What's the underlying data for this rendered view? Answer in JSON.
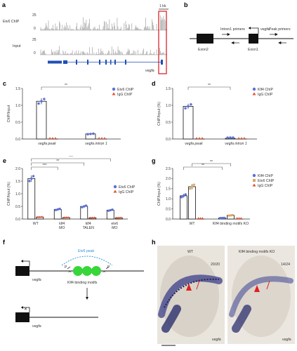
{
  "panels": {
    "a": {
      "letter": "a",
      "track_labels": [
        "Etv6 ChIP",
        "Input"
      ],
      "track_max": "25",
      "track_min": "0",
      "scale_bar": "1 kb",
      "gene": "vegfa"
    },
    "b": {
      "letter": "b",
      "gene": "vegfa",
      "intron_primers": "Intron1 primers",
      "peak_primers": "Peak primers",
      "exon2": "Exon2",
      "exon1": "Exon1"
    },
    "c": {
      "letter": "c",
      "legend": [
        "Etv6 ChIP",
        "IgG ChIP"
      ]
    },
    "d": {
      "letter": "d",
      "legend": [
        "Klf4 ChIP",
        "IgG ChIP"
      ]
    },
    "e": {
      "letter": "e",
      "legend": [
        "Etv6 ChIP",
        "IgG ChIP"
      ]
    },
    "g": {
      "letter": "g",
      "legend": [
        "Klf4 ChIP",
        "Etv6 ChIP",
        "IgG ChIP"
      ]
    },
    "f": {
      "letter": "f",
      "gene": "vegfa",
      "peak": "Etv6 peak",
      "motifs": "Klf4 binding motifs",
      "marker": "P"
    },
    "h": {
      "letter": "h",
      "left_title": "WT",
      "right_title": "Klf4 binding motifs KO",
      "left_count": "20/20",
      "right_count": "14/24",
      "gene": "vegfa"
    }
  },
  "chart_data": [
    {
      "id": "c",
      "type": "bar",
      "ylabel": "ChIP/Input",
      "ylim": [
        0,
        1.5
      ],
      "yticks": [
        "0.0",
        "0.5",
        "1.0",
        "1.5"
      ],
      "categories": [
        "vegfa peak",
        "vegfa intron 1"
      ],
      "series": [
        {
          "name": "Etv6 ChIP",
          "values": [
            1.12,
            0.15
          ]
        },
        {
          "name": "IgG ChIP",
          "values": [
            0.0,
            0.0
          ]
        }
      ],
      "significance": [
        {
          "label": "**",
          "from": 0,
          "to": 1
        }
      ]
    },
    {
      "id": "d",
      "type": "bar",
      "ylabel": "ChIP/Input (%)",
      "ylim": [
        0,
        1.5
      ],
      "yticks": [
        "0.0",
        "0.5",
        "1.0",
        "1.5"
      ],
      "categories": [
        "vegfa peak",
        "vegfa intron 1"
      ],
      "series": [
        {
          "name": "Klf4 ChIP",
          "values": [
            0.97,
            0.02
          ]
        },
        {
          "name": "IgG ChIP",
          "values": [
            0.0,
            0.0
          ]
        }
      ],
      "significance": [
        {
          "label": "**",
          "from": 0,
          "to": 1
        }
      ]
    },
    {
      "id": "e",
      "type": "bar",
      "ylabel": "ChIP/Input (%)",
      "ylim": [
        0,
        2.0
      ],
      "yticks": [
        "0.0",
        "0.5",
        "1.0",
        "1.5",
        "2.0"
      ],
      "categories": [
        "WT",
        "klf4 MO",
        "klf4 TALEN",
        "etv6 MO"
      ],
      "series": [
        {
          "name": "Etv6 ChIP",
          "values": [
            1.6,
            0.38,
            0.5,
            0.35
          ]
        },
        {
          "name": "IgG ChIP",
          "values": [
            0.08,
            0.06,
            0.05,
            0.05
          ]
        }
      ],
      "significance": [
        {
          "label": "***",
          "from": 0,
          "to": 1
        },
        {
          "label": "**",
          "from": 0,
          "to": 2
        },
        {
          "label": "***",
          "from": 0,
          "to": 3
        }
      ]
    },
    {
      "id": "g",
      "type": "bar",
      "ylabel": "ChIP/Input (%)",
      "ylim": [
        0,
        2.5
      ],
      "yticks": [
        "0.0",
        "0.5",
        "1.0",
        "1.5",
        "2.0",
        "2.5"
      ],
      "categories": [
        "WT",
        "Klf4 binding motifs KO"
      ],
      "series": [
        {
          "name": "Klf4 ChIP",
          "values": [
            1.15,
            0.05
          ]
        },
        {
          "name": "Etv6 ChIP",
          "values": [
            1.6,
            0.18
          ]
        },
        {
          "name": "IgG ChIP",
          "values": [
            0.0,
            0.0
          ]
        }
      ],
      "significance": [
        {
          "label": "**",
          "from": 0,
          "to": 1
        },
        {
          "label": "**",
          "from": 0,
          "to": 1
        }
      ]
    }
  ]
}
